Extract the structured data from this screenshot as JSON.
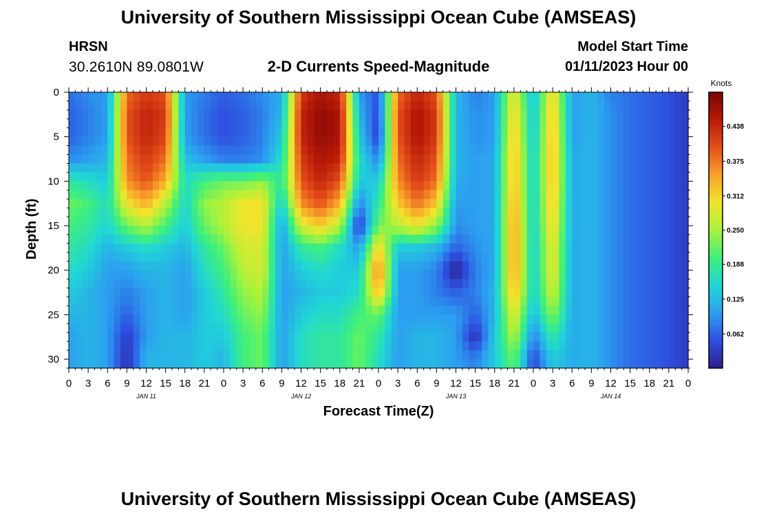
{
  "header": {
    "title": "University of Southern Mississippi Ocean Cube (AMSEAS)",
    "station": "HRSN",
    "coords": "30.2610N  89.0801W",
    "subtitle": "2-D Currents Speed-Magnitude",
    "model_start_label": "Model Start Time",
    "model_start_value": "01/11/2023 Hour 00"
  },
  "footer": {
    "title": "University of Southern Mississippi Ocean Cube (AMSEAS)"
  },
  "chart_data": {
    "type": "heatmap",
    "title": "2-D Currents Speed-Magnitude",
    "xlabel": "Forecast Time(Z)",
    "ylabel": "Depth (ft)",
    "x_tick_labels": [
      "0",
      "3",
      "6",
      "9",
      "12",
      "15",
      "18",
      "21",
      "0",
      "3",
      "6",
      "9",
      "12",
      "15",
      "18",
      "21",
      "0",
      "3",
      "6",
      "9",
      "12",
      "15",
      "18",
      "21",
      "0",
      "3",
      "6",
      "9",
      "12",
      "15",
      "18",
      "21",
      "0"
    ],
    "x_range_hours": [
      0,
      96
    ],
    "day_labels": [
      {
        "hour": 12,
        "label": "JAN 11"
      },
      {
        "hour": 36,
        "label": "JAN 12"
      },
      {
        "hour": 60,
        "label": "JAN 13"
      },
      {
        "hour": 84,
        "label": "JAN 14"
      }
    ],
    "y_ticks": [
      0,
      5,
      10,
      15,
      20,
      25,
      30
    ],
    "ylim_ft": [
      0,
      31
    ],
    "y_inverted": true,
    "colorbar": {
      "unit": "Knots",
      "range": [
        0.0,
        0.5
      ],
      "tick_labels": [
        "0.438",
        "0.375",
        "0.312",
        "0.250",
        "0.188",
        "0.125",
        "0.062"
      ],
      "tick_values": [
        0.438,
        0.375,
        0.312,
        0.25,
        0.188,
        0.125,
        0.062
      ],
      "colors": [
        "#2d1f8a",
        "#2e4fe0",
        "#2c9ff0",
        "#20d6d6",
        "#3ff07a",
        "#a8f23c",
        "#f2e42d",
        "#f8a12a",
        "#e4501a",
        "#b81a08",
        "#7a0404"
      ]
    },
    "field": {
      "description": "current speed (knots) by forecast hour (columns) and depth in ft (rows)",
      "depth_ft": [
        0,
        2.5,
        5,
        7.5,
        10,
        12.5,
        15,
        17.5,
        20,
        22.5,
        25,
        27.5,
        30
      ],
      "hours": [
        0,
        3,
        6,
        9,
        12,
        15,
        18,
        21,
        24,
        27,
        30,
        33,
        36,
        39,
        42,
        45,
        48,
        51,
        54,
        57,
        60,
        63,
        66,
        69,
        72,
        75,
        78,
        81,
        84,
        87,
        90,
        93,
        96
      ],
      "speed": [
        [
          0.07,
          0.09,
          0.1,
          0.38,
          0.42,
          0.4,
          0.1,
          0.08,
          0.06,
          0.07,
          0.09,
          0.11,
          0.42,
          0.46,
          0.44,
          0.1,
          0.05,
          0.38,
          0.44,
          0.4,
          0.12,
          0.08,
          0.1,
          0.3,
          0.12,
          0.32,
          0.1,
          0.12,
          0.08,
          0.07,
          0.06,
          0.05,
          0.03
        ],
        [
          0.06,
          0.08,
          0.1,
          0.4,
          0.44,
          0.42,
          0.1,
          0.07,
          0.05,
          0.06,
          0.08,
          0.12,
          0.44,
          0.48,
          0.46,
          0.12,
          0.04,
          0.4,
          0.46,
          0.42,
          0.12,
          0.09,
          0.1,
          0.32,
          0.13,
          0.33,
          0.1,
          0.12,
          0.09,
          0.07,
          0.06,
          0.05,
          0.03
        ],
        [
          0.06,
          0.08,
          0.1,
          0.4,
          0.44,
          0.41,
          0.1,
          0.07,
          0.05,
          0.06,
          0.08,
          0.14,
          0.44,
          0.48,
          0.46,
          0.14,
          0.03,
          0.4,
          0.46,
          0.42,
          0.12,
          0.09,
          0.1,
          0.33,
          0.13,
          0.34,
          0.1,
          0.12,
          0.09,
          0.07,
          0.06,
          0.05,
          0.03
        ],
        [
          0.09,
          0.1,
          0.12,
          0.38,
          0.42,
          0.38,
          0.13,
          0.1,
          0.08,
          0.08,
          0.09,
          0.16,
          0.42,
          0.46,
          0.44,
          0.16,
          0.08,
          0.38,
          0.44,
          0.4,
          0.12,
          0.1,
          0.11,
          0.34,
          0.14,
          0.34,
          0.11,
          0.12,
          0.09,
          0.07,
          0.06,
          0.05,
          0.03
        ],
        [
          0.18,
          0.16,
          0.14,
          0.36,
          0.4,
          0.34,
          0.16,
          0.2,
          0.22,
          0.22,
          0.24,
          0.18,
          0.4,
          0.44,
          0.4,
          0.14,
          0.14,
          0.36,
          0.42,
          0.38,
          0.11,
          0.1,
          0.11,
          0.34,
          0.14,
          0.34,
          0.11,
          0.12,
          0.09,
          0.07,
          0.06,
          0.05,
          0.03
        ],
        [
          0.22,
          0.2,
          0.16,
          0.3,
          0.34,
          0.26,
          0.15,
          0.24,
          0.26,
          0.3,
          0.3,
          0.14,
          0.36,
          0.4,
          0.34,
          0.08,
          0.18,
          0.32,
          0.38,
          0.32,
          0.1,
          0.1,
          0.11,
          0.35,
          0.14,
          0.33,
          0.11,
          0.12,
          0.09,
          0.07,
          0.06,
          0.05,
          0.03
        ],
        [
          0.2,
          0.18,
          0.15,
          0.22,
          0.26,
          0.2,
          0.14,
          0.22,
          0.26,
          0.3,
          0.3,
          0.1,
          0.28,
          0.32,
          0.26,
          0.02,
          0.22,
          0.26,
          0.3,
          0.24,
          0.09,
          0.1,
          0.11,
          0.36,
          0.14,
          0.32,
          0.11,
          0.12,
          0.09,
          0.07,
          0.06,
          0.05,
          0.03
        ],
        [
          0.18,
          0.16,
          0.12,
          0.14,
          0.16,
          0.14,
          0.12,
          0.18,
          0.22,
          0.28,
          0.28,
          0.1,
          0.18,
          0.2,
          0.16,
          0.1,
          0.32,
          0.14,
          0.14,
          0.12,
          0.06,
          0.09,
          0.11,
          0.36,
          0.14,
          0.3,
          0.11,
          0.12,
          0.09,
          0.07,
          0.06,
          0.05,
          0.03
        ],
        [
          0.16,
          0.14,
          0.1,
          0.1,
          0.12,
          0.12,
          0.1,
          0.16,
          0.2,
          0.26,
          0.28,
          0.1,
          0.14,
          0.16,
          0.14,
          0.14,
          0.38,
          0.1,
          0.1,
          0.08,
          0.0,
          0.08,
          0.11,
          0.36,
          0.14,
          0.3,
          0.11,
          0.12,
          0.09,
          0.07,
          0.06,
          0.05,
          0.03
        ],
        [
          0.14,
          0.12,
          0.1,
          0.08,
          0.1,
          0.12,
          0.1,
          0.14,
          0.18,
          0.24,
          0.26,
          0.1,
          0.12,
          0.14,
          0.14,
          0.16,
          0.34,
          0.1,
          0.1,
          0.08,
          0.06,
          0.08,
          0.12,
          0.34,
          0.14,
          0.28,
          0.11,
          0.12,
          0.09,
          0.07,
          0.06,
          0.05,
          0.03
        ],
        [
          0.12,
          0.12,
          0.1,
          0.06,
          0.1,
          0.12,
          0.1,
          0.14,
          0.16,
          0.22,
          0.24,
          0.1,
          0.14,
          0.16,
          0.16,
          0.2,
          0.22,
          0.1,
          0.1,
          0.1,
          0.1,
          0.06,
          0.12,
          0.3,
          0.12,
          0.24,
          0.11,
          0.12,
          0.09,
          0.07,
          0.06,
          0.05,
          0.03
        ],
        [
          0.1,
          0.12,
          0.1,
          0.03,
          0.1,
          0.12,
          0.12,
          0.14,
          0.14,
          0.2,
          0.22,
          0.1,
          0.16,
          0.18,
          0.18,
          0.22,
          0.18,
          0.1,
          0.12,
          0.12,
          0.1,
          0.02,
          0.14,
          0.26,
          0.08,
          0.18,
          0.11,
          0.12,
          0.09,
          0.07,
          0.06,
          0.05,
          0.03
        ],
        [
          0.1,
          0.12,
          0.1,
          0.02,
          0.12,
          0.12,
          0.12,
          0.14,
          0.12,
          0.2,
          0.22,
          0.1,
          0.16,
          0.18,
          0.18,
          0.22,
          0.16,
          0.1,
          0.12,
          0.12,
          0.1,
          0.08,
          0.14,
          0.22,
          0.04,
          0.14,
          0.11,
          0.12,
          0.09,
          0.07,
          0.06,
          0.05,
          0.03
        ]
      ]
    }
  }
}
